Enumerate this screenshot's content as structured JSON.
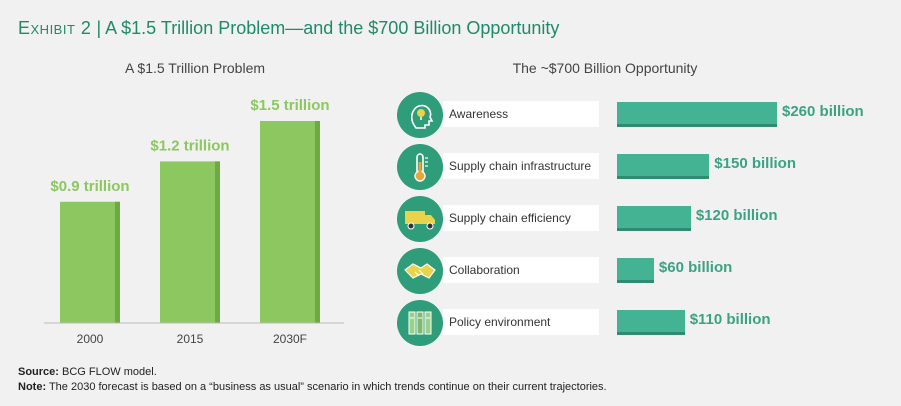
{
  "header": {
    "exhibit_label": "Exhibit 2",
    "separator": "|",
    "title": "A $1.5 Trillion Problem—and the $700 Billion Opportunity"
  },
  "colors": {
    "green_bar": "#8cc760",
    "green_bar_side": "#6ea944",
    "teal_bar": "#44b394",
    "teal_text": "#3aa383",
    "title_green": "#1f8a6a"
  },
  "chart_data": [
    {
      "type": "bar",
      "title": "A $1.5 Trillion Problem",
      "categories": [
        "2000",
        "2015",
        "2030F"
      ],
      "values": [
        0.9,
        1.2,
        1.5
      ],
      "data_labels": [
        "$0.9 trillion",
        "$1.2 trillion",
        "$1.5 trillion"
      ],
      "xlabel": "",
      "ylabel": "",
      "ylim": [
        0,
        1.5
      ],
      "grid": false
    },
    {
      "type": "bar",
      "orientation": "horizontal",
      "title": "The ~$700 Billion Opportunity",
      "categories": [
        "Awareness",
        "Supply chain infrastructure",
        "Supply chain efficiency",
        "Collaboration",
        "Policy environment"
      ],
      "values": [
        260,
        150,
        120,
        60,
        110
      ],
      "data_labels": [
        "$260 billion",
        "$150 billion",
        "$120 billion",
        "$60 billion",
        "$110 billion"
      ],
      "icons": [
        "head-lightbulb-icon",
        "thermometer-icon",
        "truck-icon",
        "handshake-icon",
        "binders-icon"
      ],
      "xlim": [
        0,
        260
      ],
      "grid": false
    }
  ],
  "footnotes": {
    "source_label": "Source:",
    "source_text": " BCG FLOW model.",
    "note_label": "Note:",
    "note_text": " The 2030 forecast is based on a “business as usual” scenario in which trends continue on their current trajectories."
  }
}
